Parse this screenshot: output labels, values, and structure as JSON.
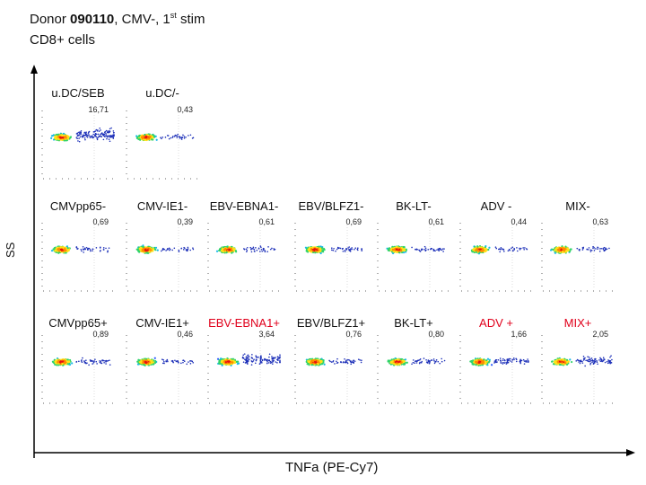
{
  "header": {
    "donor_prefix": "Donor ",
    "donor_id": "090110",
    "donor_suffix": ", CMV-, 1",
    "stim_sup": "st",
    "stim_word": " stim",
    "subtitle": "CD8+ cells"
  },
  "axes": {
    "x_label": "TNFa  (PE-Cy7)",
    "y_label": "SS"
  },
  "rows": [
    {
      "name": "controls",
      "panels": [
        {
          "label": "u.DC/SEB",
          "value": "16,71",
          "color": "#111111"
        },
        {
          "label": "u.DC/-",
          "value": "0,43",
          "color": "#111111"
        }
      ]
    },
    {
      "name": "minus",
      "panels": [
        {
          "label": "CMVpp65-",
          "value": "0,69",
          "color": "#111111"
        },
        {
          "label": "CMV-IE1-",
          "value": "0,39",
          "color": "#111111"
        },
        {
          "label": "EBV-EBNA1-",
          "value": "0,61",
          "color": "#111111"
        },
        {
          "label": "EBV/BLFZ1-",
          "value": "0,69",
          "color": "#111111"
        },
        {
          "label": "BK-LT-",
          "value": "0,61",
          "color": "#111111"
        },
        {
          "label": "ADV -",
          "value": "0,44",
          "color": "#111111"
        },
        {
          "label": "MIX-",
          "value": "0,63",
          "color": "#111111"
        }
      ]
    },
    {
      "name": "plus",
      "panels": [
        {
          "label": "CMVpp65+",
          "value": "0,89",
          "color": "#111111"
        },
        {
          "label": "CMV-IE1+",
          "value": "0,46",
          "color": "#111111"
        },
        {
          "label": "EBV-EBNA1+",
          "value": "3,64",
          "color": "#e0001b"
        },
        {
          "label": "EBV/BLFZ1+",
          "value": "0,76",
          "color": "#111111"
        },
        {
          "label": "BK-LT+",
          "value": "0,80",
          "color": "#111111"
        },
        {
          "label": "ADV +",
          "value": "1,66",
          "color": "#e0001b"
        },
        {
          "label": "MIX+",
          "value": "2,05",
          "color": "#e0001b"
        }
      ]
    }
  ]
}
